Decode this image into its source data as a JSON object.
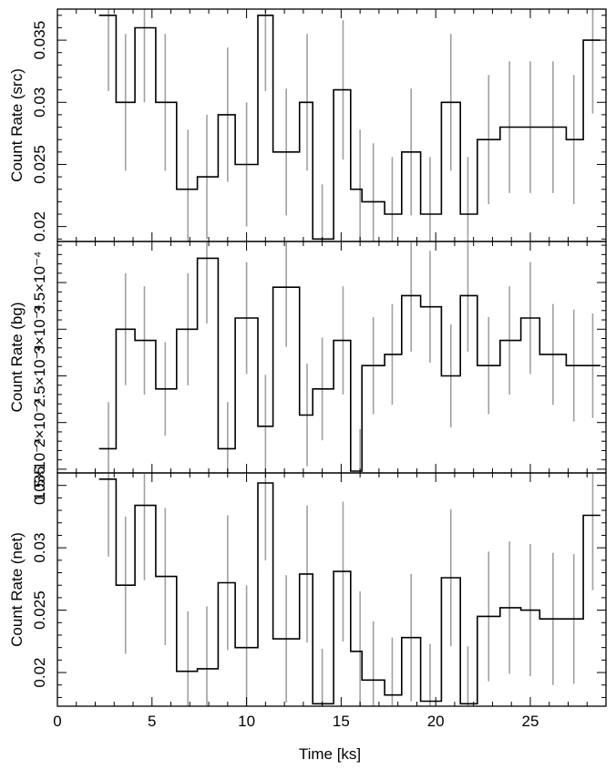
{
  "x_axis": {
    "label": "Time [ks]",
    "range": [
      0,
      29
    ],
    "major_ticks": [
      0,
      5,
      10,
      15,
      20,
      25
    ],
    "tick_labels": [
      "0",
      "5",
      "10",
      "15",
      "20",
      "25"
    ]
  },
  "bin_edges": [
    2.2,
    3.1,
    4.1,
    5.2,
    6.3,
    7.4,
    8.5,
    9.4,
    10.6,
    11.4,
    12.8,
    13.5,
    14.6,
    15.5,
    16.1,
    17.3,
    18.2,
    19.2,
    20.3,
    21.3,
    22.2,
    23.4,
    24.5,
    25.5,
    26.9,
    27.8,
    28.7
  ],
  "colors": {
    "histogram": "#000000",
    "error_bar": "#a0a0a0"
  },
  "chart_data": [
    {
      "type": "line",
      "step": true,
      "ylabel": "Count Rate (src)",
      "ylim": [
        0.0188,
        0.0375
      ],
      "y_ticks": [
        0.02,
        0.025,
        0.03,
        0.035
      ],
      "y_tick_labels": [
        "0.02",
        "0.025",
        "0.03",
        "0.035"
      ],
      "x": [
        2.7,
        3.6,
        4.6,
        5.7,
        6.9,
        7.9,
        9.0,
        10.0,
        11.0,
        12.1,
        13.2,
        14.0,
        15.1,
        16.0,
        16.7,
        17.7,
        18.7,
        19.7,
        20.8,
        21.7,
        22.8,
        23.9,
        25.0,
        26.2,
        27.3,
        28.3
      ],
      "y": [
        0.037,
        0.03,
        0.036,
        0.03,
        0.023,
        0.024,
        0.029,
        0.025,
        0.037,
        0.026,
        0.03,
        0.019,
        0.031,
        0.023,
        0.022,
        0.021,
        0.026,
        0.021,
        0.03,
        0.021,
        0.027,
        0.028,
        0.028,
        0.028,
        0.027,
        0.035
      ],
      "y_err": [
        0.0061,
        0.0055,
        0.006,
        0.0055,
        0.0048,
        0.005,
        0.0054,
        0.005,
        0.0061,
        0.0051,
        0.0055,
        0.0044,
        0.0056,
        0.0048,
        0.0047,
        0.0046,
        0.0051,
        0.0046,
        0.0055,
        0.0046,
        0.0052,
        0.0053,
        0.0053,
        0.0053,
        0.0052,
        0.0059
      ]
    },
    {
      "type": "line",
      "step": true,
      "ylabel": "Count Rate (bg)",
      "ylim": [
        0.000146,
        0.000394
      ],
      "y_ticks": [
        0.00015,
        0.0002,
        0.00025,
        0.0003,
        0.00035
      ],
      "y_tick_labels": [
        "1.5×10⁻⁴",
        "2×10⁻⁴",
        "2.5×10⁻⁴",
        "3×10⁻⁴",
        "3.5×10⁻⁴"
      ],
      "x": [
        2.7,
        3.6,
        4.6,
        5.7,
        6.9,
        7.9,
        9.0,
        10.0,
        11.0,
        12.1,
        13.2,
        14.0,
        15.1,
        16.0,
        16.7,
        17.7,
        18.7,
        19.7,
        20.8,
        21.7,
        22.8,
        23.9,
        25.0,
        26.2,
        27.3,
        28.3
      ],
      "y": [
        0.000172,
        0.0003,
        0.000288,
        0.000236,
        0.0003,
        0.000376,
        0.000172,
        0.000312,
        0.000196,
        0.000345,
        0.000208,
        0.000236,
        0.000288,
        0.000148,
        0.000261,
        0.000273,
        0.000336,
        0.000324,
        0.00025,
        0.000336,
        0.000261,
        0.000288,
        0.000312,
        0.000273,
        0.000261,
        0.000261
      ],
      "y_err": [
        5e-05,
        6e-05,
        5.8e-05,
        5e-05,
        6e-05,
        7e-05,
        5e-05,
        6e-05,
        5.5e-05,
        6.4e-05,
        5.5e-05,
        5.5e-05,
        5.8e-05,
        4.5e-05,
        5.2e-05,
        5.4e-05,
        6e-05,
        6e-05,
        5.5e-05,
        6e-05,
        5.2e-05,
        5.8e-05,
        6e-05,
        5.4e-05,
        6e-05,
        5.6e-05
      ]
    },
    {
      "type": "line",
      "step": true,
      "ylabel": "Count Rate (net)",
      "ylim": [
        0.0173,
        0.036
      ],
      "y_ticks": [
        0.02,
        0.025,
        0.03,
        0.035
      ],
      "y_tick_labels": [
        "0.02",
        "0.025",
        "0.03",
        "0.035"
      ],
      "x": [
        2.7,
        3.6,
        4.6,
        5.7,
        6.9,
        7.9,
        9.0,
        10.0,
        11.0,
        12.1,
        13.2,
        14.0,
        15.1,
        16.0,
        16.7,
        17.7,
        18.7,
        19.7,
        20.8,
        21.7,
        22.8,
        23.9,
        25.0,
        26.2,
        27.3,
        28.3
      ],
      "y": [
        0.0355,
        0.027,
        0.0334,
        0.0277,
        0.0201,
        0.0203,
        0.0272,
        0.022,
        0.0352,
        0.0227,
        0.0279,
        0.0175,
        0.0281,
        0.0217,
        0.0194,
        0.0182,
        0.0228,
        0.0177,
        0.0276,
        0.0175,
        0.0245,
        0.0252,
        0.025,
        0.0243,
        0.0243,
        0.0326
      ],
      "y_err": [
        0.0062,
        0.0055,
        0.006,
        0.0055,
        0.0048,
        0.005,
        0.0054,
        0.005,
        0.0062,
        0.0051,
        0.0055,
        0.0044,
        0.0056,
        0.0048,
        0.0047,
        0.0046,
        0.0051,
        0.0046,
        0.0055,
        0.0046,
        0.0052,
        0.0053,
        0.0053,
        0.0053,
        0.0052,
        0.006
      ]
    }
  ]
}
